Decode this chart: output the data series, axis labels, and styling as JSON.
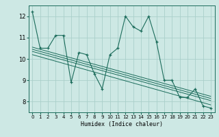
{
  "title": "",
  "xlabel": "Humidex (Indice chaleur)",
  "bg_color": "#cde8e4",
  "grid_color": "#aacfca",
  "line_color": "#1a6b5a",
  "xlim": [
    -0.5,
    23.5
  ],
  "ylim": [
    7.5,
    12.5
  ],
  "yticks": [
    8,
    9,
    10,
    11,
    12
  ],
  "xticks": [
    0,
    1,
    2,
    3,
    4,
    5,
    6,
    7,
    8,
    9,
    10,
    11,
    12,
    13,
    14,
    15,
    16,
    17,
    18,
    19,
    20,
    21,
    22,
    23
  ],
  "series": [
    [
      0,
      12.2
    ],
    [
      1,
      10.5
    ],
    [
      2,
      10.5
    ],
    [
      3,
      11.1
    ],
    [
      4,
      11.1
    ],
    [
      5,
      8.9
    ],
    [
      6,
      10.3
    ],
    [
      7,
      10.2
    ],
    [
      8,
      9.3
    ],
    [
      9,
      8.6
    ],
    [
      10,
      10.2
    ],
    [
      11,
      10.5
    ],
    [
      12,
      12.0
    ],
    [
      13,
      11.5
    ],
    [
      14,
      11.3
    ],
    [
      15,
      12.0
    ],
    [
      16,
      10.8
    ],
    [
      17,
      9.0
    ],
    [
      18,
      9.0
    ],
    [
      19,
      8.2
    ],
    [
      20,
      8.2
    ],
    [
      21,
      8.6
    ],
    [
      22,
      7.8
    ],
    [
      23,
      7.7
    ]
  ],
  "trend_lines": [
    {
      "x": [
        0,
        23
      ],
      "y": [
        10.55,
        8.25
      ]
    },
    {
      "x": [
        0,
        23
      ],
      "y": [
        10.45,
        8.15
      ]
    },
    {
      "x": [
        0,
        23
      ],
      "y": [
        10.35,
        8.05
      ]
    },
    {
      "x": [
        0,
        23
      ],
      "y": [
        10.2,
        7.85
      ]
    }
  ]
}
